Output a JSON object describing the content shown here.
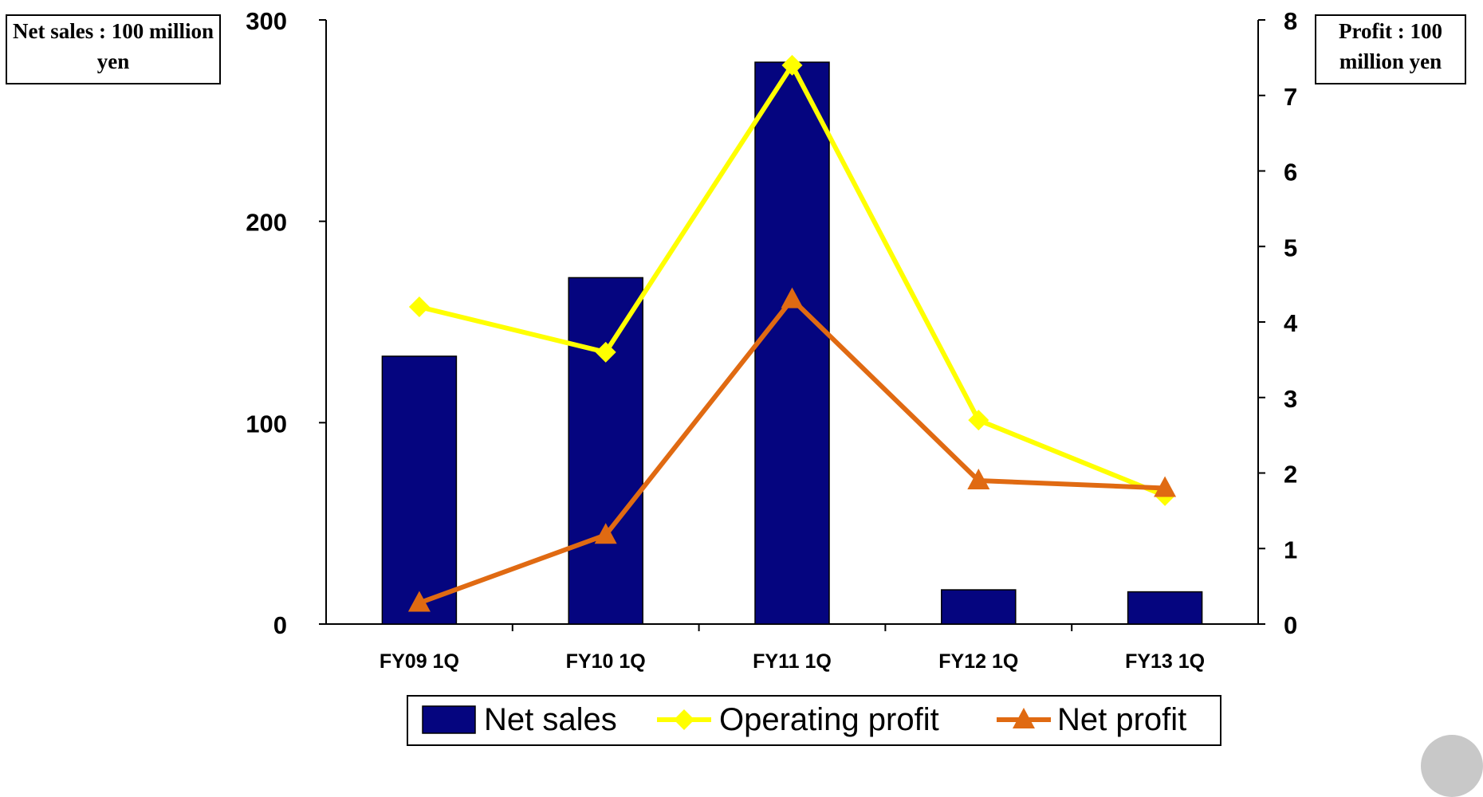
{
  "unit_labels": {
    "left": "Net sales : 100 million yen",
    "right": "Profit : 100 million yen"
  },
  "chart_data": {
    "type": "bar",
    "categories": [
      "FY09 1Q",
      "FY10 1Q",
      "FY11 1Q",
      "FY12 1Q",
      "FY13 1Q"
    ],
    "y_left": {
      "ylim": [
        0,
        300
      ],
      "ticks": [
        "0",
        "100",
        "200",
        "300"
      ]
    },
    "y_right": {
      "ylim": [
        0,
        8
      ],
      "ticks": [
        "0",
        "1",
        "2",
        "3",
        "4",
        "5",
        "6",
        "7",
        "8"
      ]
    },
    "series": [
      {
        "name": "Net sales",
        "type": "bar",
        "axis": "left",
        "color": "#05057f",
        "values": [
          133,
          172,
          279,
          17,
          16
        ]
      },
      {
        "name": "Operating profit",
        "type": "line",
        "axis": "right",
        "marker": "diamond",
        "color": "#ffff00",
        "values": [
          4.2,
          3.6,
          7.4,
          2.7,
          1.7
        ]
      },
      {
        "name": "Net profit",
        "type": "line",
        "axis": "right",
        "marker": "triangle",
        "color": "#e06a12",
        "values": [
          0.28,
          1.18,
          4.3,
          1.9,
          1.8
        ]
      }
    ],
    "legend_position": "bottom",
    "grid": false
  }
}
